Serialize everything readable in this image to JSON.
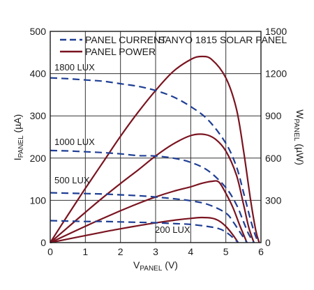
{
  "chart_data": {
    "type": "line",
    "title": "SANYO 1815 SOLAR PANEL",
    "xlabel": {
      "main": "V",
      "sub": "PANEL",
      "unit": " (V)"
    },
    "ylabel_left": {
      "main": "I",
      "sub": "PANEL",
      "unit": " (µA)"
    },
    "ylabel_right": {
      "main": "W",
      "sub": "PANEL",
      "unit": " (µW)"
    },
    "xlim": [
      0,
      6
    ],
    "ylim_left": [
      0,
      500
    ],
    "ylim_right": [
      0,
      1500
    ],
    "xticks": [
      "0",
      "1",
      "2",
      "3",
      "4",
      "5",
      "6"
    ],
    "yticks_left": [
      "0",
      "100",
      "200",
      "300",
      "400",
      "500"
    ],
    "yticks_right": [
      "0",
      "300",
      "600",
      "900",
      "1200",
      "1500"
    ],
    "grid": true,
    "legend_position": "top-left",
    "legend": [
      {
        "label": "PANEL CURRENT",
        "style": "dashed",
        "color": "#1f3f94"
      },
      {
        "label": "PANEL POWER",
        "style": "solid",
        "color": "#7a1420"
      }
    ],
    "colors": {
      "current": "#1f3f94",
      "power": "#7a1420",
      "grid": "#333333"
    },
    "annotations": [
      "1800 LUX",
      "1000 LUX",
      "500 LUX",
      "200 LUX"
    ],
    "current_series": [
      {
        "name": "1800 LUX",
        "axis": "left",
        "x": [
          0,
          0.5,
          1,
          1.5,
          2,
          2.5,
          3,
          3.5,
          4,
          4.5,
          5,
          5.3,
          5.5,
          5.7,
          5.85,
          5.95
        ],
        "y": [
          390,
          388,
          385,
          382,
          376,
          370,
          360,
          345,
          322,
          290,
          235,
          180,
          120,
          55,
          15,
          0
        ]
      },
      {
        "name": "1000 LUX",
        "axis": "left",
        "x": [
          0,
          0.5,
          1,
          1.5,
          2,
          2.5,
          3,
          3.5,
          4,
          4.5,
          5,
          5.3,
          5.5,
          5.65,
          5.8
        ],
        "y": [
          218,
          217,
          215,
          213,
          210,
          206,
          205,
          200,
          190,
          170,
          130,
          90,
          50,
          20,
          0
        ]
      },
      {
        "name": "500 LUX",
        "axis": "left",
        "x": [
          0,
          0.5,
          1,
          1.5,
          2,
          2.5,
          3,
          3.5,
          4,
          4.5,
          5,
          5.2,
          5.4,
          5.6
        ],
        "y": [
          118,
          117,
          116,
          115,
          113,
          111,
          108,
          104,
          99,
          90,
          70,
          50,
          25,
          0
        ]
      },
      {
        "name": "200 LUX",
        "axis": "left",
        "x": [
          0,
          0.5,
          1,
          1.5,
          2,
          2.5,
          3,
          3.5,
          4,
          4.5,
          4.8,
          5,
          5.2,
          5.35
        ],
        "y": [
          52,
          51,
          50,
          50,
          49,
          48,
          47,
          45,
          43,
          38,
          33,
          25,
          12,
          0
        ]
      }
    ],
    "power_series": [
      {
        "name": "1800 LUX",
        "axis": "right",
        "x": [
          0,
          0.5,
          1,
          1.5,
          2,
          2.5,
          3,
          3.5,
          4,
          4.3,
          4.6,
          5,
          5.3,
          5.5,
          5.7,
          5.85,
          5.95
        ],
        "y": [
          0,
          195,
          385,
          570,
          755,
          925,
          1080,
          1215,
          1300,
          1322,
          1300,
          1170,
          950,
          660,
          310,
          90,
          0
        ]
      },
      {
        "name": "1000 LUX",
        "axis": "right",
        "x": [
          0,
          0.5,
          1,
          1.5,
          2,
          2.5,
          3,
          3.5,
          4,
          4.4,
          4.7,
          5,
          5.3,
          5.5,
          5.65,
          5.8
        ],
        "y": [
          0,
          108,
          215,
          320,
          420,
          515,
          615,
          700,
          760,
          768,
          735,
          650,
          480,
          275,
          110,
          0
        ]
      },
      {
        "name": "500 LUX",
        "axis": "right",
        "x": [
          0,
          0.5,
          1,
          1.5,
          2,
          2.5,
          3,
          3.5,
          4,
          4.3,
          4.6,
          4.8,
          5,
          5.2,
          5.4,
          5.6
        ],
        "y": [
          0,
          58,
          116,
          172,
          226,
          277,
          324,
          364,
          396,
          420,
          435,
          430,
          350,
          250,
          120,
          0
        ]
      },
      {
        "name": "200 LUX",
        "axis": "right",
        "x": [
          0,
          0.5,
          1,
          1.5,
          2,
          2.5,
          3,
          3.5,
          4,
          4.3,
          4.6,
          4.8,
          5,
          5.2,
          5.35
        ],
        "y": [
          0,
          25,
          50,
          75,
          98,
          120,
          140,
          158,
          172,
          178,
          174,
          155,
          115,
          55,
          0
        ]
      }
    ]
  }
}
